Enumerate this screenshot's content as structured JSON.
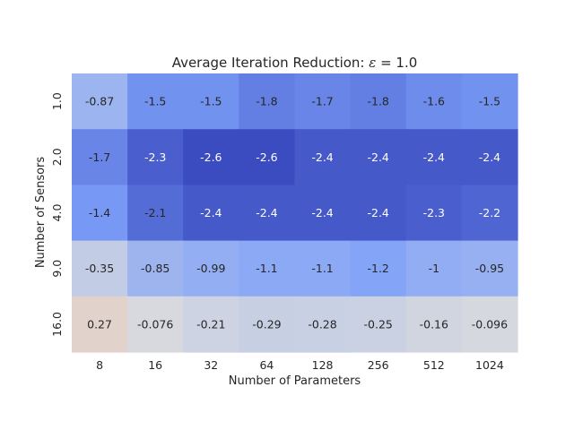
{
  "chart_data": {
    "type": "heatmap",
    "title": {
      "prefix": "Average Iteration Reduction: ",
      "math_symbol": "ε",
      "math_rest": " = 1.0"
    },
    "xlabel": "Number of Parameters",
    "ylabel": "Number of Sensors",
    "x_categories": [
      "8",
      "16",
      "32",
      "64",
      "128",
      "256",
      "512",
      "1024"
    ],
    "y_categories": [
      "1.0",
      "2.0",
      "4.0",
      "9.0",
      "16.0"
    ],
    "values": [
      [
        -0.87,
        -1.5,
        -1.5,
        -1.8,
        -1.7,
        -1.8,
        -1.6,
        -1.5
      ],
      [
        -1.7,
        -2.3,
        -2.6,
        -2.6,
        -2.4,
        -2.4,
        -2.4,
        -2.4
      ],
      [
        -1.4,
        -2.1,
        -2.4,
        -2.4,
        -2.4,
        -2.4,
        -2.3,
        -2.2
      ],
      [
        -0.35,
        -0.85,
        -0.99,
        -1.1,
        -1.1,
        -1.2,
        -1,
        -0.95
      ],
      [
        0.27,
        -0.076,
        -0.21,
        -0.29,
        -0.28,
        -0.25,
        -0.16,
        -0.096
      ]
    ],
    "value_labels": [
      [
        "-0.87",
        "-1.5",
        "-1.5",
        "-1.8",
        "-1.7",
        "-1.8",
        "-1.6",
        "-1.5"
      ],
      [
        "-1.7",
        "-2.3",
        "-2.6",
        "-2.6",
        "-2.4",
        "-2.4",
        "-2.4",
        "-2.4"
      ],
      [
        "-1.4",
        "-2.1",
        "-2.4",
        "-2.4",
        "-2.4",
        "-2.4",
        "-2.3",
        "-2.2"
      ],
      [
        "-0.35",
        "-0.85",
        "-0.99",
        "-1.1",
        "-1.1",
        "-1.2",
        "-1",
        "-0.95"
      ],
      [
        "0.27",
        "-0.076",
        "-0.21",
        "-0.29",
        "-0.28",
        "-0.25",
        "-0.16",
        "-0.096"
      ]
    ],
    "colormap": "coolwarm",
    "vmin": -2.6,
    "vmax": 2.6,
    "colorbar": false,
    "grid": false,
    "text_color_dark": "#262626",
    "text_color_light": "#ffffff"
  }
}
